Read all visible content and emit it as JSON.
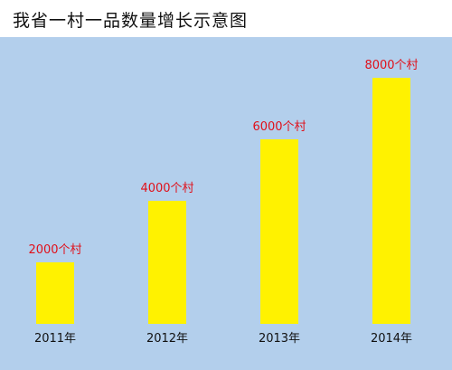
{
  "chart_data": {
    "type": "bar",
    "title": "我省一村一品数量增长示意图",
    "categories": [
      "2011年",
      "2012年",
      "2013年",
      "2014年"
    ],
    "values": [
      2000,
      4000,
      6000,
      8000
    ],
    "data_labels": [
      "2000个村",
      "4000个村",
      "6000个村",
      "8000个村"
    ],
    "unit": "个村",
    "ylim": [
      0,
      8000
    ],
    "grid": false,
    "legend": "none",
    "colors": {
      "bar": "#fff200",
      "background": "#b3cfec",
      "data_label": "#e0101a",
      "tick_label": "#111111"
    }
  }
}
